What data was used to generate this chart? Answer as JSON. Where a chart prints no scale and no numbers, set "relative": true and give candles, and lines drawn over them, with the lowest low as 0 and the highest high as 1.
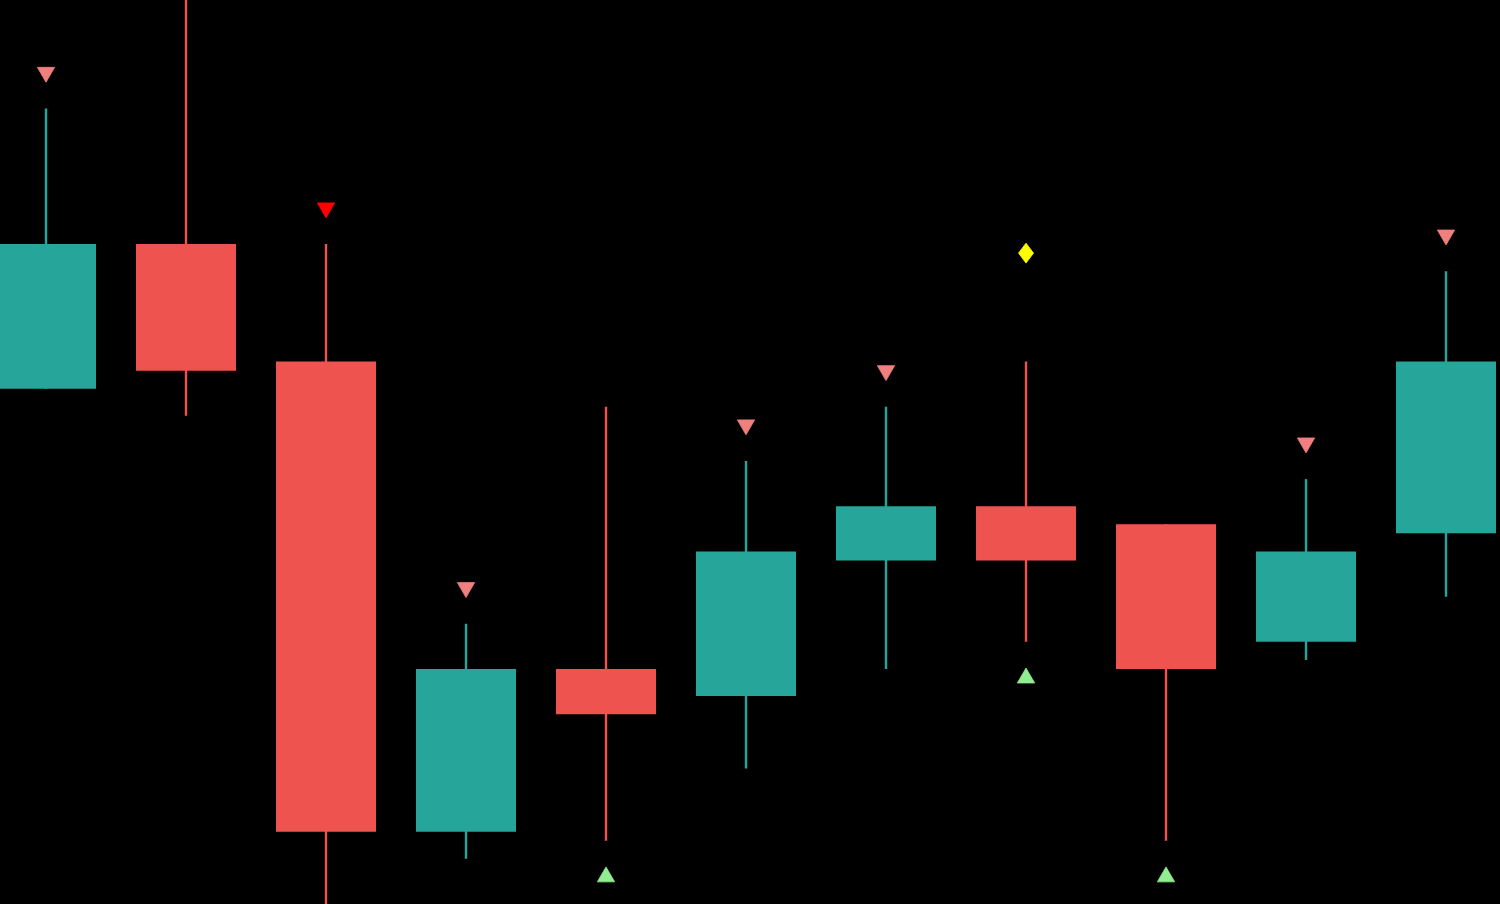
{
  "chart_data": {
    "type": "candlestick",
    "relative": true,
    "categories": [
      null,
      null,
      null,
      null,
      null,
      null,
      null,
      null,
      null,
      null,
      null
    ],
    "ohlc": [
      [
        0.57,
        0.88,
        0.57,
        0.73
      ],
      [
        0.73,
        1,
        0.54,
        0.59
      ],
      [
        0.6,
        0.73,
        0,
        0.08
      ],
      [
        0.08,
        0.31,
        0.05,
        0.26
      ],
      [
        0.26,
        0.55,
        0.07,
        0.21
      ],
      [
        0.23,
        0.49,
        0.15,
        0.39
      ],
      [
        0.38,
        0.55,
        0.26,
        0.44
      ],
      [
        0.44,
        0.6,
        0.29,
        0.38
      ],
      [
        0.42,
        0.42,
        0.07,
        0.26
      ],
      [
        0.29,
        0.47,
        0.27,
        0.39
      ],
      [
        0.41,
        0.7,
        0.34,
        0.6
      ]
    ],
    "colors": [
      "#26a69a",
      "#ef5350",
      "#ef5350",
      "#26a69a",
      "#ef5350",
      "#26a69a",
      "#26a69a",
      "#ef5350",
      "#ef5350",
      "#26a69a",
      "#26a69a"
    ],
    "series": [
      {
        "type": "scatter",
        "marker": "triangle",
        "colors": [
          "#f08080",
          "#f08080",
          "#ff0000",
          "#f08080",
          "#f08080",
          "#f08080",
          "#f08080",
          "#f08080",
          "#f08080",
          "#f08080",
          "#f08080"
        ],
        "values": [
          0.92,
          null,
          0.77,
          0.35,
          null,
          0.53,
          0.59,
          null,
          null,
          0.51,
          0.74
        ]
      },
      {
        "type": "scatter",
        "marker": "triangle",
        "color": "#90ee90",
        "values": [
          null,
          null,
          null,
          null,
          0.03,
          null,
          null,
          0.25,
          0.03,
          null,
          null
        ]
      },
      {
        "type": "scatter",
        "marker": "diamond",
        "color": "#ffff00",
        "values": [
          null,
          null,
          null,
          null,
          null,
          null,
          null,
          0.72,
          null,
          null,
          null
        ]
      }
    ]
  }
}
